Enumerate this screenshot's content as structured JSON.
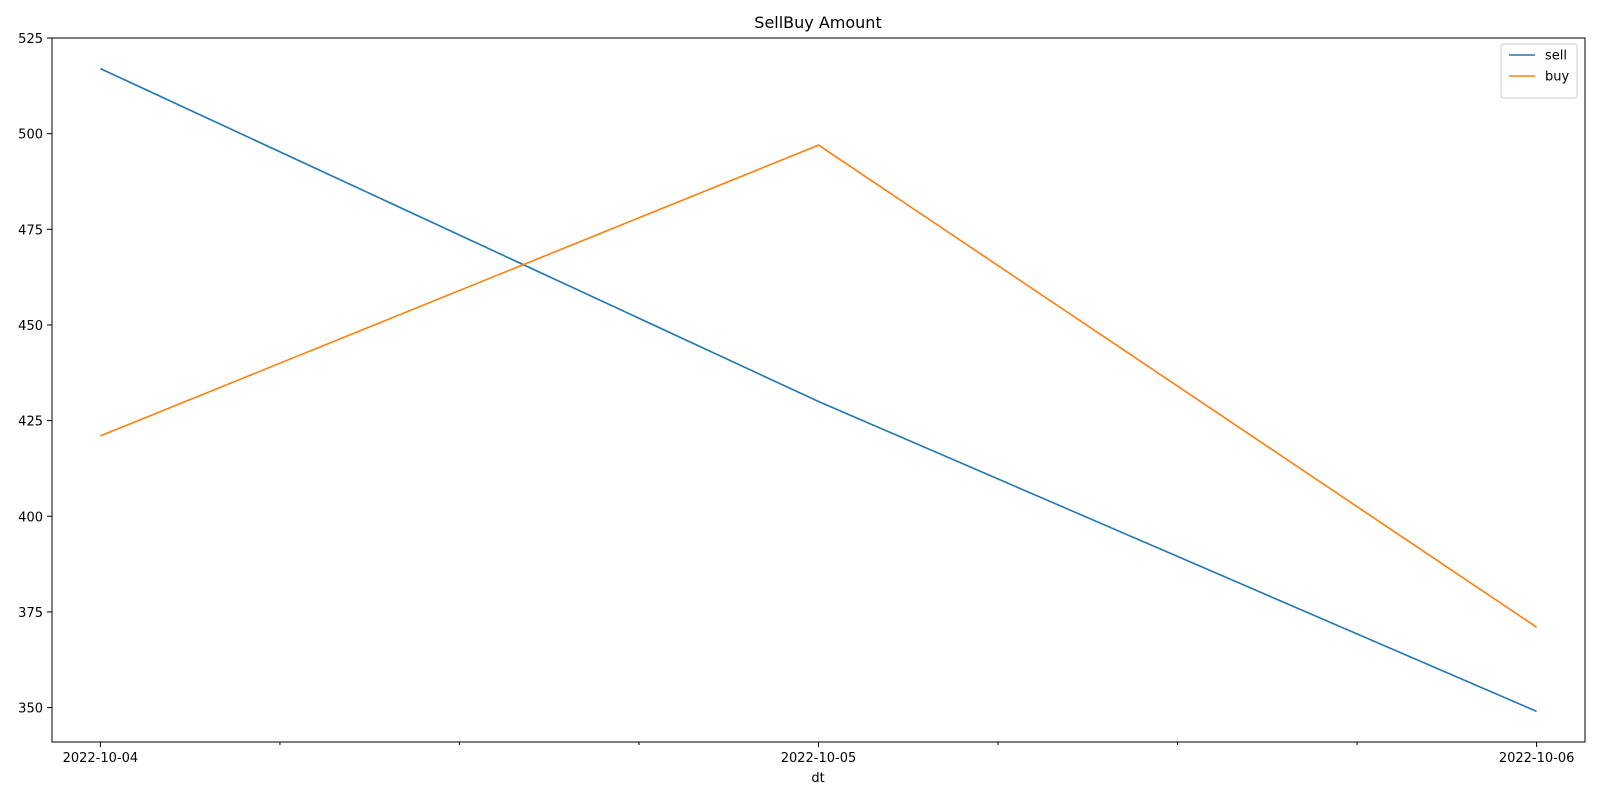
{
  "chart_data": {
    "type": "line",
    "title": "SellBuy Amount",
    "xlabel": "dt",
    "ylabel": "",
    "x": [
      "2022-10-04",
      "2022-10-05",
      "2022-10-06"
    ],
    "x_tick_labels": [
      "2022-10-04",
      "2022-10-05",
      "2022-10-06"
    ],
    "xlim": [
      "2022-10-03T22:23",
      "2022-10-06T01:37"
    ],
    "minor_x_ticks": true,
    "ylim": [
      341,
      525
    ],
    "y_ticks": [
      350,
      375,
      400,
      425,
      450,
      475,
      500,
      525
    ],
    "grid": false,
    "legend_position": "top-right",
    "series": [
      {
        "name": "sell",
        "color": "#1f77b4",
        "values": [
          517,
          430,
          349
        ]
      },
      {
        "name": "buy",
        "color": "#ff7f0e",
        "values": [
          421,
          497,
          371
        ]
      }
    ]
  }
}
